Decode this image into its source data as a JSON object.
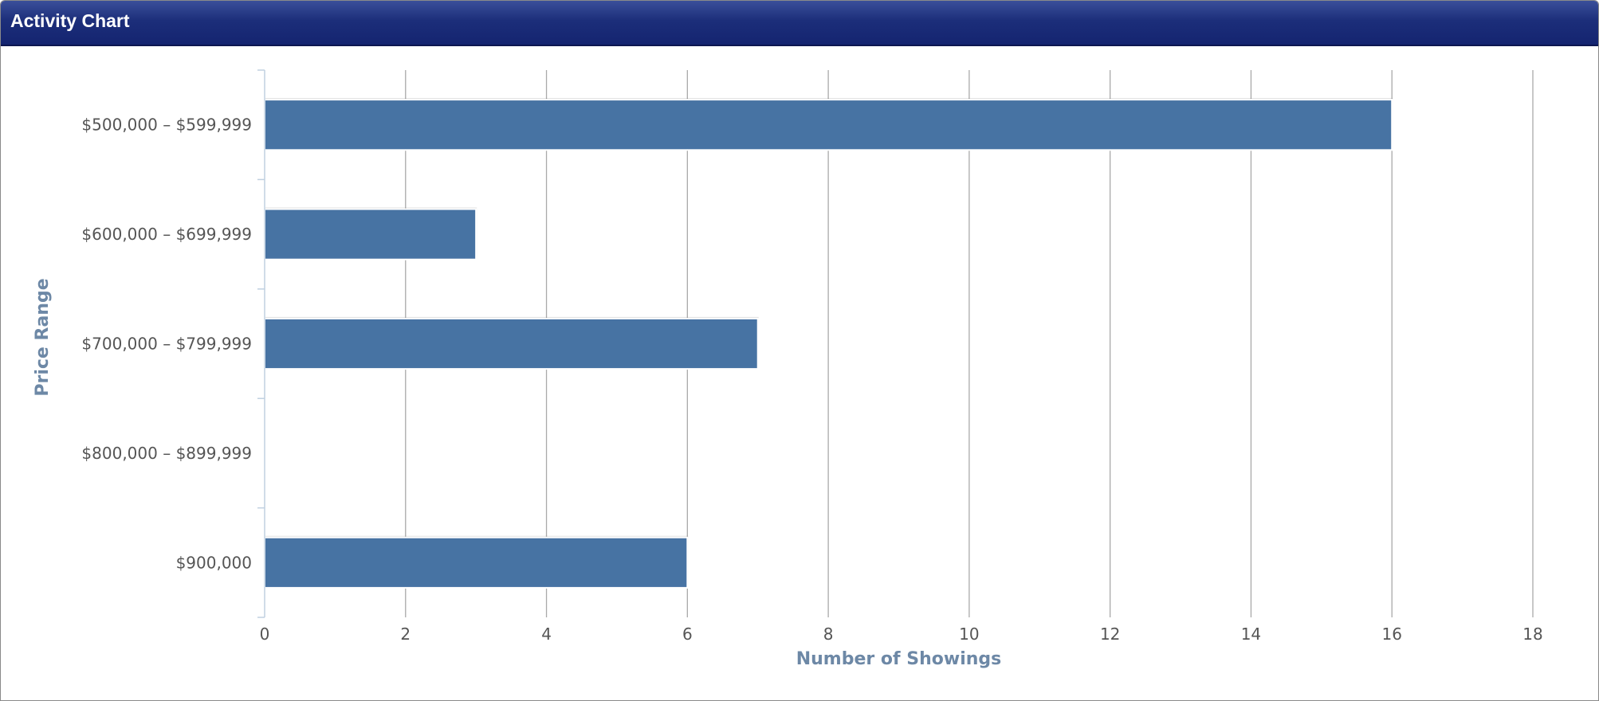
{
  "header": {
    "title": "Activity Chart"
  },
  "chart_data": {
    "type": "bar",
    "orientation": "horizontal",
    "categories": [
      "$500,000 - $599,999",
      "$600,000 - $699,999",
      "$700,000 - $799,999",
      "$800,000 - $899,999",
      "$900,000"
    ],
    "values": [
      16,
      3,
      7,
      0,
      6
    ],
    "xlabel": "Number of Showings",
    "ylabel": "Price Range",
    "xlim": [
      0,
      18
    ],
    "xticks": [
      0,
      2,
      4,
      6,
      8,
      10,
      12,
      14,
      16,
      18
    ],
    "grid": true,
    "bar_color": "#4773a3"
  }
}
